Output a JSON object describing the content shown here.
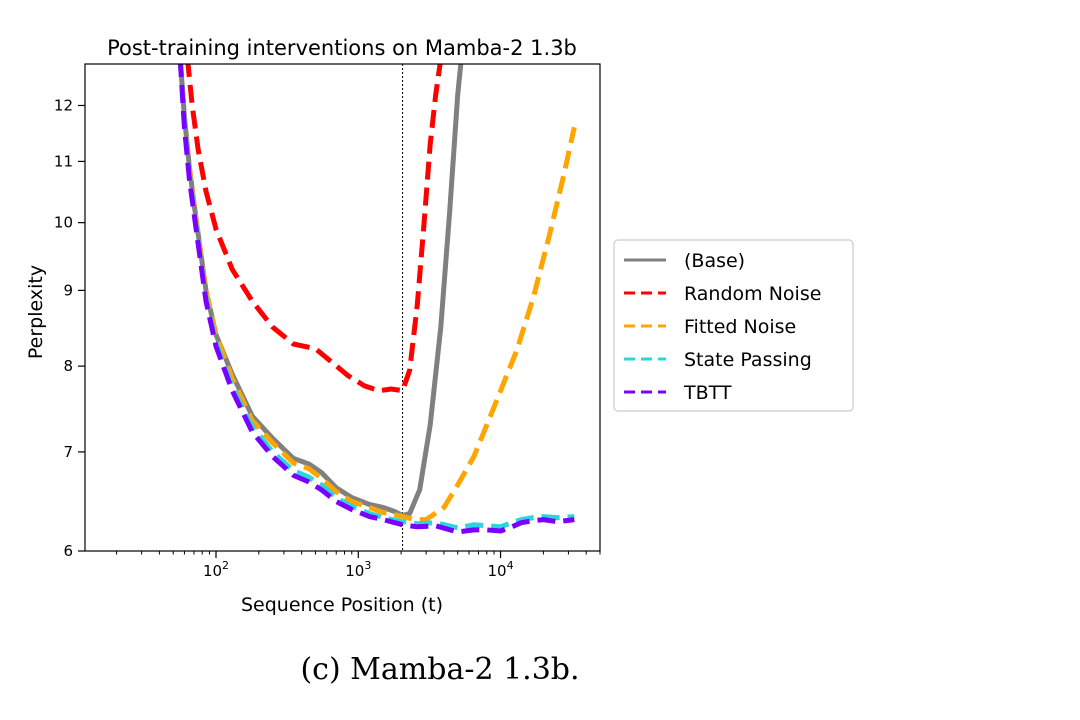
{
  "caption": "(c) Mamba-2 1.3b.",
  "chart_data": {
    "type": "line",
    "title": "Post-training interventions on Mamba-2 1.3b",
    "xlabel": "Sequence Position (t)",
    "ylabel": "Perplexity",
    "xscale": "log",
    "yscale": "log",
    "xlim": [
      12,
      50000
    ],
    "ylim": [
      6,
      12.8
    ],
    "xticks": [
      {
        "value": 100,
        "base": "10",
        "exp": "2"
      },
      {
        "value": 1000,
        "base": "10",
        "exp": "3"
      },
      {
        "value": 10000,
        "base": "10",
        "exp": "4"
      }
    ],
    "yticks": [
      {
        "value": 6,
        "label": "6"
      },
      {
        "value": 7,
        "label": "7"
      },
      {
        "value": 8,
        "label": "8"
      },
      {
        "value": 9,
        "label": "9"
      },
      {
        "value": 10,
        "label": "10"
      },
      {
        "value": 11,
        "label": "11"
      },
      {
        "value": 12,
        "label": "12"
      }
    ],
    "vline_x": 2048,
    "legend_position": "right",
    "series": [
      {
        "name": "(Base)",
        "color": "#808080",
        "dash": "solid",
        "x": [
          56,
          60,
          65,
          72,
          85,
          100,
          130,
          180,
          250,
          350,
          450,
          550,
          700,
          900,
          1200,
          1500,
          1800,
          2048,
          2300,
          2700,
          3200,
          3800,
          4400,
          5000,
          5300
        ],
        "y": [
          12.9,
          11.8,
          10.9,
          10.1,
          9.0,
          8.4,
          7.9,
          7.4,
          7.15,
          6.93,
          6.87,
          6.78,
          6.62,
          6.52,
          6.45,
          6.42,
          6.38,
          6.34,
          6.36,
          6.6,
          7.3,
          8.5,
          10.2,
          12.2,
          12.9
        ]
      },
      {
        "name": "Random Noise",
        "color": "#ff0000",
        "dash": "dashed",
        "x": [
          63,
          68,
          75,
          85,
          100,
          130,
          180,
          250,
          350,
          500,
          650,
          850,
          1100,
          1400,
          1700,
          2048,
          2300,
          2600,
          2900,
          3200,
          3500,
          3800
        ],
        "y": [
          12.9,
          12.0,
          11.2,
          10.5,
          9.9,
          9.3,
          8.85,
          8.5,
          8.28,
          8.22,
          8.05,
          7.88,
          7.76,
          7.7,
          7.72,
          7.7,
          7.95,
          8.8,
          10.0,
          11.3,
          12.2,
          12.9
        ]
      },
      {
        "name": "Fitted Noise",
        "color": "#ffa500",
        "dash": "dashed",
        "x": [
          56,
          60,
          65,
          72,
          85,
          100,
          130,
          180,
          250,
          350,
          450,
          550,
          700,
          900,
          1200,
          1500,
          1800,
          2048,
          2500,
          3000,
          4000,
          5000,
          6500,
          8000,
          10000,
          13000,
          17000,
          22000,
          28000,
          33000
        ],
        "y": [
          12.9,
          11.8,
          10.9,
          10.1,
          9.0,
          8.4,
          7.85,
          7.35,
          7.1,
          6.88,
          6.82,
          6.72,
          6.58,
          6.48,
          6.42,
          6.37,
          6.35,
          6.33,
          6.3,
          6.3,
          6.42,
          6.65,
          6.95,
          7.3,
          7.7,
          8.2,
          8.9,
          9.8,
          10.8,
          11.6
        ]
      },
      {
        "name": "State Passing",
        "color": "#2ad5e0",
        "dash": "dashed",
        "x": [
          56,
          60,
          65,
          72,
          85,
          100,
          130,
          180,
          250,
          350,
          450,
          550,
          700,
          900,
          1200,
          1500,
          2048,
          2600,
          3500,
          5000,
          6500,
          8000,
          10000,
          12000,
          14000,
          17000,
          20000,
          25000,
          33000
        ],
        "y": [
          12.9,
          11.7,
          10.8,
          10.0,
          8.9,
          8.3,
          7.75,
          7.28,
          7.0,
          6.8,
          6.73,
          6.65,
          6.52,
          6.43,
          6.36,
          6.32,
          6.28,
          6.26,
          6.27,
          6.22,
          6.25,
          6.24,
          6.23,
          6.27,
          6.3,
          6.32,
          6.33,
          6.32,
          6.33
        ]
      },
      {
        "name": "TBTT",
        "color": "#7b00ff",
        "dash": "dashed",
        "x": [
          56,
          60,
          65,
          72,
          85,
          100,
          130,
          180,
          250,
          350,
          450,
          550,
          700,
          900,
          1200,
          1500,
          2048,
          2600,
          3500,
          5000,
          6500,
          8000,
          10000,
          12000,
          14000,
          17000,
          20000,
          25000,
          33000
        ],
        "y": [
          12.9,
          11.6,
          10.7,
          9.95,
          8.85,
          8.25,
          7.7,
          7.22,
          6.95,
          6.75,
          6.68,
          6.6,
          6.48,
          6.4,
          6.33,
          6.3,
          6.25,
          6.23,
          6.24,
          6.18,
          6.2,
          6.2,
          6.19,
          6.23,
          6.27,
          6.29,
          6.3,
          6.28,
          6.3
        ]
      }
    ]
  }
}
